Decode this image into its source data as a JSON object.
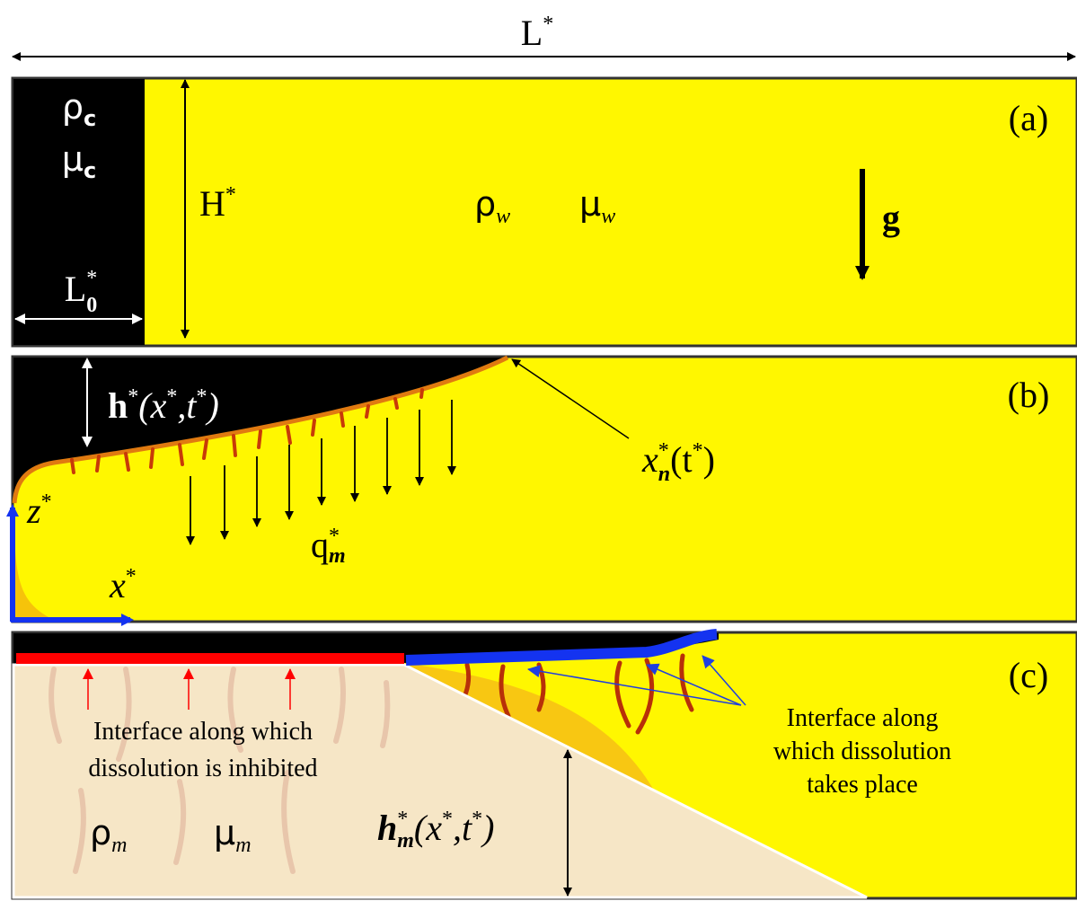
{
  "domain_length": {
    "base": "L",
    "sup": "*"
  },
  "panel_a": {
    "label": "(a)",
    "lock_density": {
      "base": "ρ",
      "sub": "c"
    },
    "lock_viscosity": {
      "base": "μ",
      "sub": "c"
    },
    "lock_length": {
      "base": "L",
      "sup": "*",
      "sub": "0"
    },
    "height": {
      "base": "H",
      "sup": "*"
    },
    "ambient_density": {
      "base": "ρ",
      "sub": "w"
    },
    "ambient_viscosity": {
      "base": "μ",
      "sub": "w"
    },
    "gravity": "g"
  },
  "panel_b": {
    "label": "(b)",
    "depth": [
      "h",
      "*",
      "(x",
      "*",
      ",t",
      "*",
      ")"
    ],
    "nose": {
      "base": "x",
      "sup": "*",
      "sub": "n",
      "tail": [
        "(t",
        "*",
        ")"
      ]
    },
    "flux": {
      "base": "q",
      "sup": "*",
      "sub": "m"
    },
    "z_axis": {
      "base": "z",
      "sup": "*"
    },
    "x_axis": {
      "base": "x",
      "sup": "*"
    }
  },
  "panel_c": {
    "label": "(c)",
    "inhibited_note": [
      "Interface along which",
      "dissolution is inhibited"
    ],
    "dissolution_note": [
      "Interface along",
      "which dissolution",
      "takes place"
    ],
    "mixed_density": {
      "base": "ρ",
      "sub": "m"
    },
    "mixed_viscosity": {
      "base": "μ",
      "sub": "m"
    },
    "mixed_depth": [
      "h",
      "*",
      "m",
      "(x",
      "*",
      ",t",
      "*",
      ")"
    ]
  }
}
